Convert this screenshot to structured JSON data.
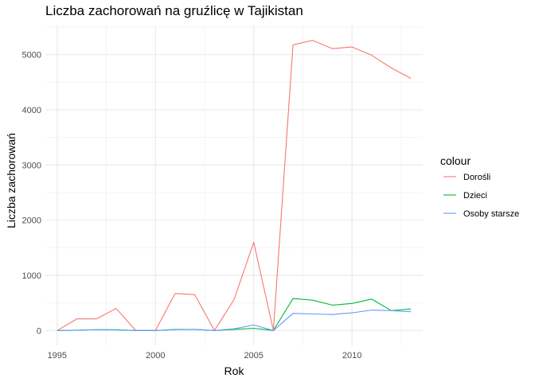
{
  "chart_data": {
    "type": "line",
    "title": "Liczba zachorowań na gruźlicę w Tajikistan",
    "xlabel": "Rok",
    "ylabel": "Liczba zachorowań",
    "legend_title": "colour",
    "legend_position": "right",
    "grid": true,
    "xlim": [
      1994.4,
      2013.6
    ],
    "ylim": [
      -270,
      5530
    ],
    "x_ticks": [
      1995,
      2000,
      2005,
      2010
    ],
    "y_ticks": [
      0,
      1000,
      2000,
      3000,
      4000,
      5000
    ],
    "x": [
      1995,
      1996,
      1997,
      1998,
      1999,
      2000,
      2001,
      2002,
      2003,
      2004,
      2005,
      2006,
      2007,
      2008,
      2009,
      2010,
      2011,
      2012,
      2013
    ],
    "series": [
      {
        "name": "Dorośli",
        "color": "#F8766D",
        "values": [
          0,
          210,
          210,
          400,
          0,
          0,
          670,
          650,
          0,
          560,
          1600,
          0,
          5180,
          5260,
          5110,
          5140,
          4990,
          4760,
          4570
        ]
      },
      {
        "name": "Dzieci",
        "color": "#00BA38",
        "values": [
          0,
          5,
          15,
          10,
          0,
          0,
          20,
          20,
          0,
          20,
          40,
          0,
          580,
          550,
          460,
          490,
          570,
          360,
          390
        ]
      },
      {
        "name": "Osoby starsze",
        "color": "#619CFF",
        "values": [
          0,
          5,
          15,
          15,
          0,
          0,
          15,
          20,
          0,
          30,
          100,
          0,
          310,
          300,
          290,
          320,
          370,
          360,
          340
        ]
      }
    ]
  }
}
